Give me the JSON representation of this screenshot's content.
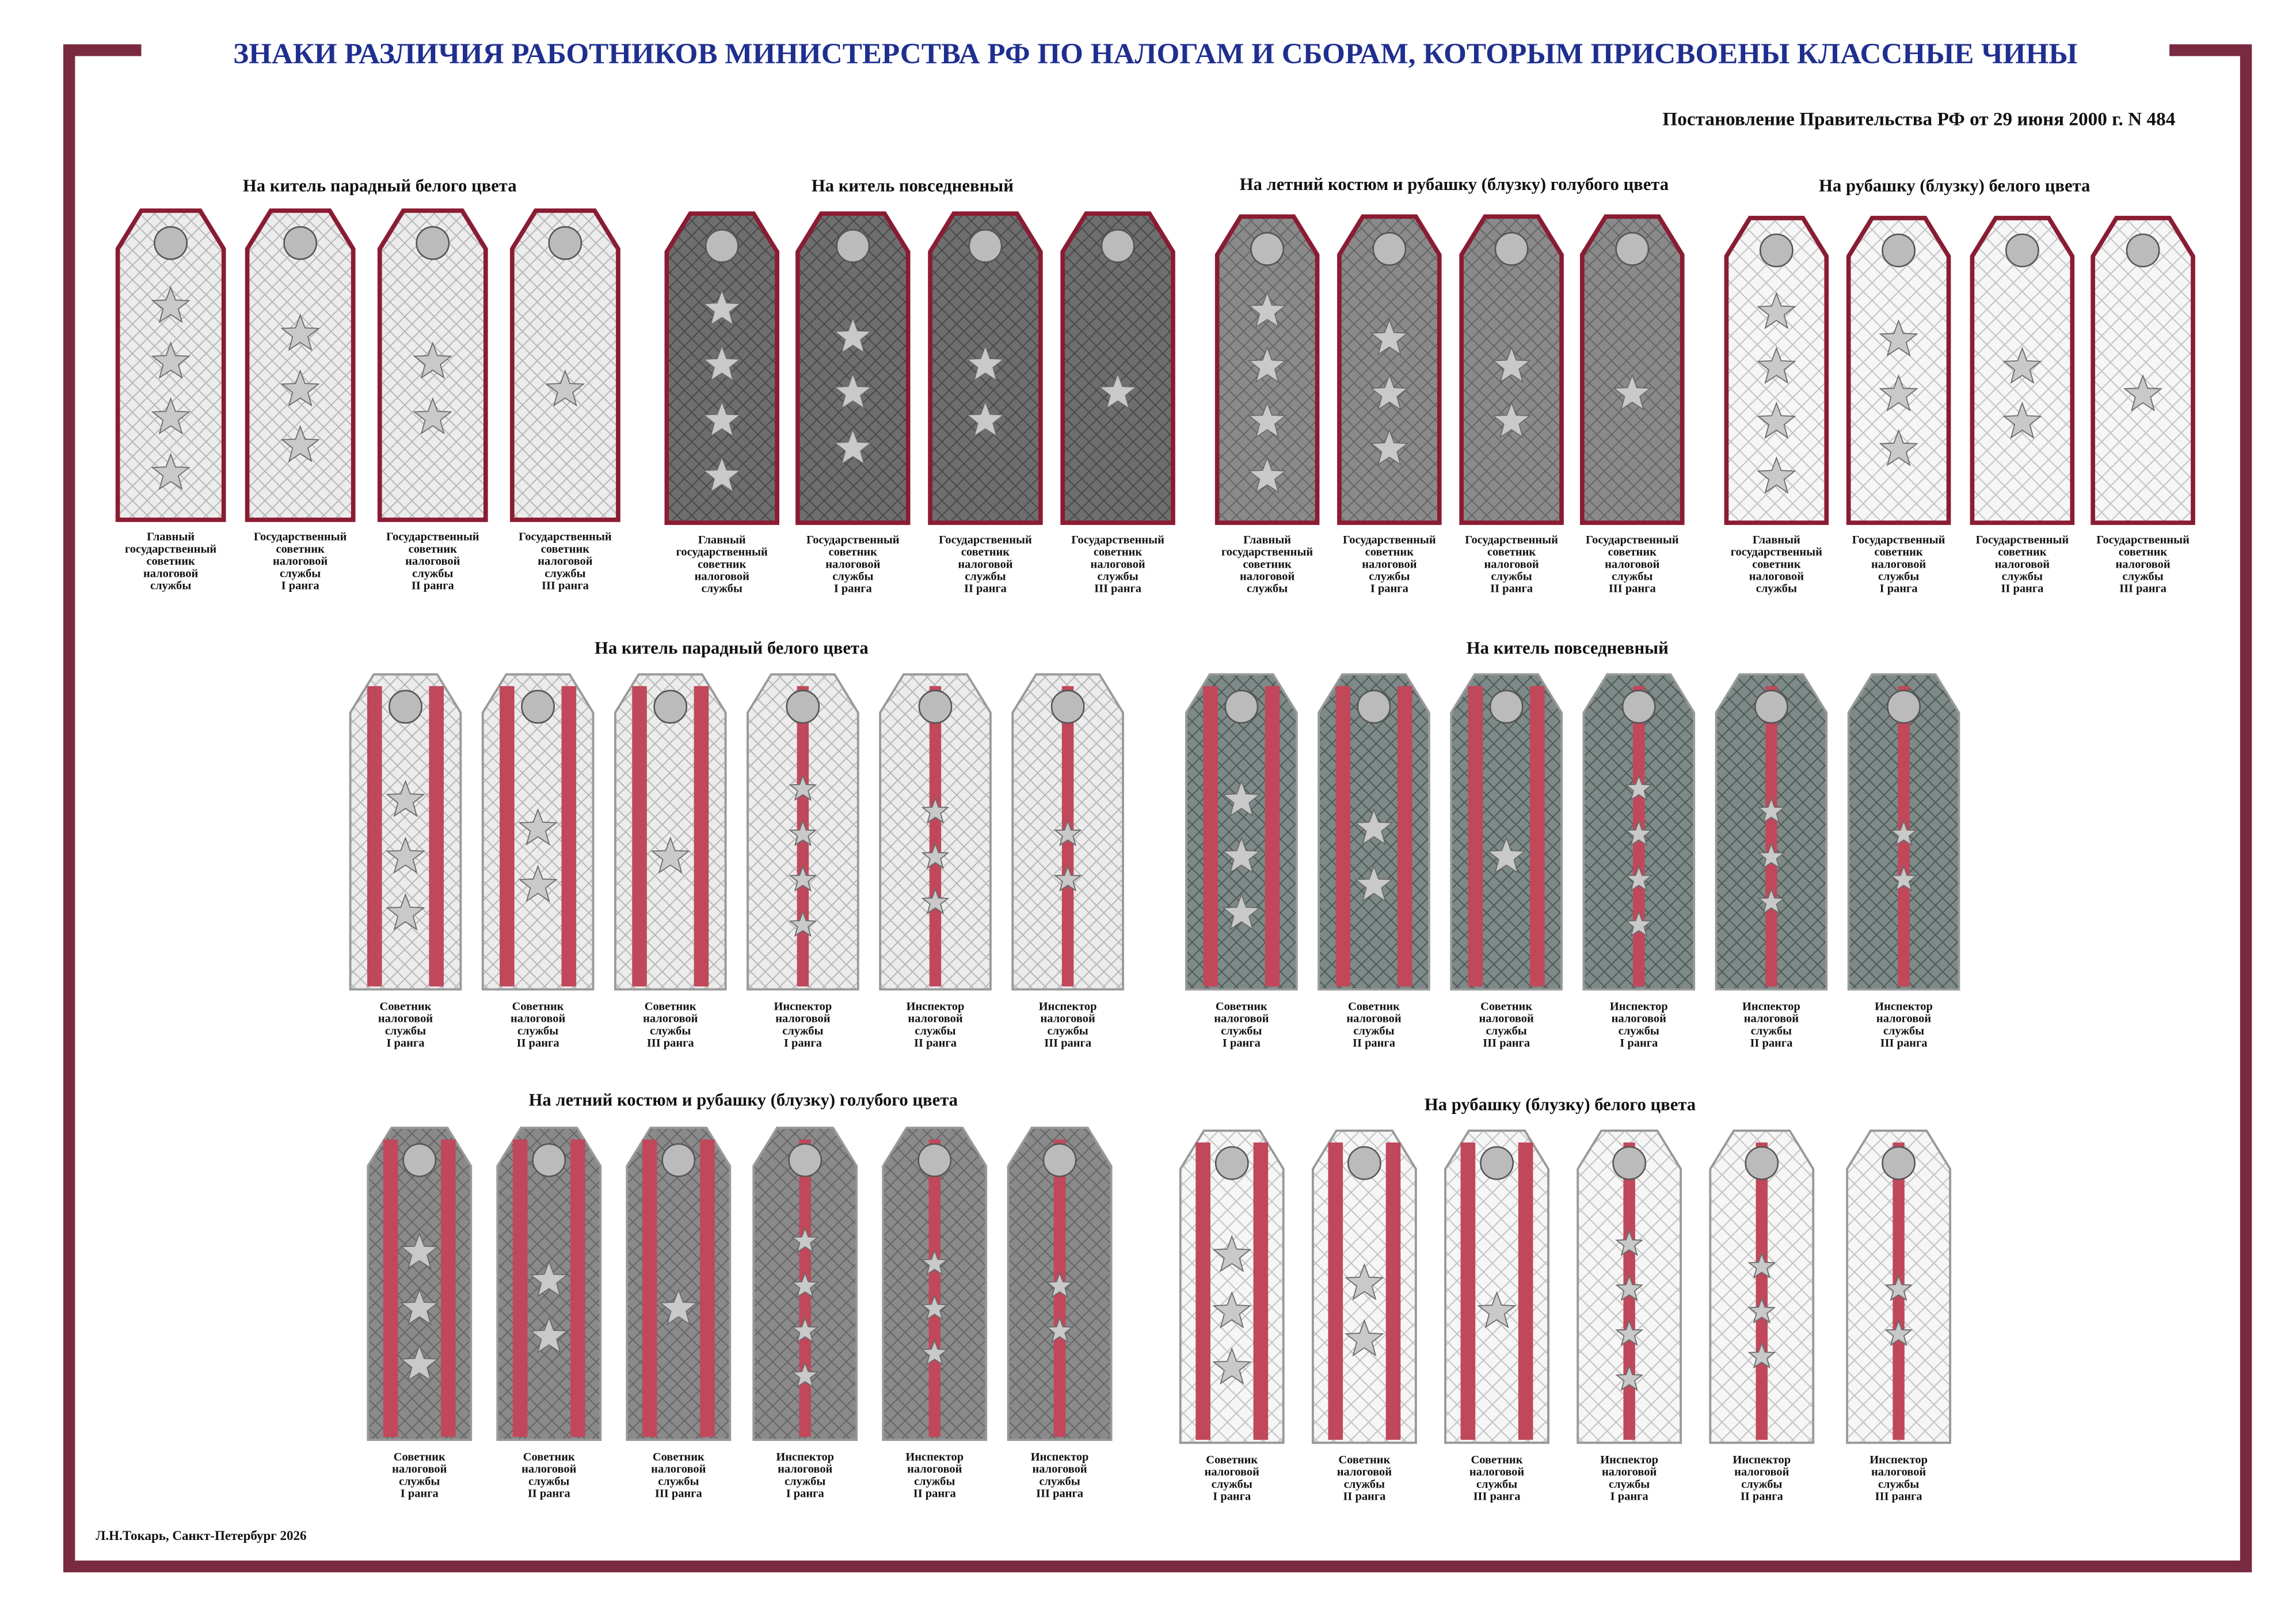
{
  "header": {
    "title": "ЗНАКИ РАЗЛИЧИЯ РАБОТНИКОВ МИНИСТЕРСТВА РФ ПО НАЛОГАМ И СБОРАМ, КОТОРЫМ ПРИСВОЕНЫ КЛАССНЫЕ ЧИНЫ",
    "subtitle": "Постановление Правительства РФ от 29 июня 2000 г. N 484"
  },
  "groups": [
    {
      "heading": "На китель парадный белого цвета",
      "items": [
        [
          "Главный",
          "государственный",
          "советник",
          "налоговой",
          "службы"
        ],
        [
          "Государственный",
          "советник",
          "налоговой",
          "службы",
          "I ранга"
        ],
        [
          "Государственный",
          "советник",
          "налоговой",
          "службы",
          "II ранга"
        ],
        [
          "Государственный",
          "советник",
          "налоговой",
          "службы",
          "III ранга"
        ]
      ]
    },
    {
      "heading": "На китель повседневный",
      "items": [
        [
          "Главный",
          "государственный",
          "советник",
          "налоговой",
          "службы"
        ],
        [
          "Государственный",
          "советник",
          "налоговой",
          "службы",
          "I ранга"
        ],
        [
          "Государственный",
          "советник",
          "налоговой",
          "службы",
          "II ранга"
        ],
        [
          "Государственный",
          "советник",
          "налоговой",
          "службы",
          "III ранга"
        ]
      ]
    },
    {
      "heading": "На летний костюм и рубашку (блузку) голубого цвета",
      "items": [
        [
          "Главный",
          "государственный",
          "советник",
          "налоговой",
          "службы"
        ],
        [
          "Государственный",
          "советник",
          "налоговой",
          "службы",
          "I ранга"
        ],
        [
          "Государственный",
          "советник",
          "налоговой",
          "службы",
          "II ранга"
        ],
        [
          "Государственный",
          "советник",
          "налоговой",
          "службы",
          "III ранга"
        ]
      ]
    },
    {
      "heading": "На рубашку (блузку) белого цвета",
      "items": [
        [
          "Главный",
          "государственный",
          "советник",
          "налоговой",
          "службы"
        ],
        [
          "Государственный",
          "советник",
          "налоговой",
          "службы",
          "I ранга"
        ],
        [
          "Государственный",
          "советник",
          "налоговой",
          "службы",
          "II ранга"
        ],
        [
          "Государственный",
          "советник",
          "налоговой",
          "службы",
          "III ранга"
        ]
      ]
    },
    {
      "heading": "На китель парадный белого цвета",
      "items": [
        [
          "Советник",
          "налоговой",
          "службы",
          "I ранга"
        ],
        [
          "Советник",
          "налоговой",
          "службы",
          "II ранга"
        ],
        [
          "Советник",
          "налоговой",
          "службы",
          "III ранга"
        ],
        [
          "Инспектор",
          "налоговой",
          "службы",
          "I ранга"
        ],
        [
          "Инспектор",
          "налоговой",
          "службы",
          "II ранга"
        ],
        [
          "Инспектор",
          "налоговой",
          "службы",
          "III ранга"
        ]
      ]
    },
    {
      "heading": "На китель повседневный",
      "items": [
        [
          "Советник",
          "налоговой",
          "службы",
          "I ранга"
        ],
        [
          "Советник",
          "налоговой",
          "службы",
          "II ранга"
        ],
        [
          "Советник",
          "налоговой",
          "службы",
          "III ранга"
        ],
        [
          "Инспектор",
          "налоговой",
          "службы",
          "I ранга"
        ],
        [
          "Инспектор",
          "налоговой",
          "службы",
          "II ранга"
        ],
        [
          "Инспектор",
          "налоговой",
          "службы",
          "III ранга"
        ]
      ]
    },
    {
      "heading": "На летний костюм и рубашку (блузку) голубого цвета",
      "items": [
        [
          "Советник",
          "налоговой",
          "службы",
          "I ранга"
        ],
        [
          "Советник",
          "налоговой",
          "службы",
          "II ранга"
        ],
        [
          "Советник",
          "налоговой",
          "службы",
          "III ранга"
        ],
        [
          "Инспектор",
          "налоговой",
          "службы",
          "I ранга"
        ],
        [
          "Инспектор",
          "налоговой",
          "службы",
          "II ранга"
        ],
        [
          "Инспектор",
          "налоговой",
          "службы",
          "III ранга"
        ]
      ]
    },
    {
      "heading": "На рубашку (блузку) белого цвета",
      "items": [
        [
          "Советник",
          "налоговой",
          "службы",
          "I ранга"
        ],
        [
          "Советник",
          "налоговой",
          "службы",
          "II ранга"
        ],
        [
          "Советник",
          "налоговой",
          "службы",
          "III ранга"
        ],
        [
          "Инспектор",
          "налоговой",
          "службы",
          "I ранга"
        ],
        [
          "Инспектор",
          "налоговой",
          "службы",
          "II ранга"
        ],
        [
          "Инспектор",
          "налоговой",
          "службы",
          "III ранга"
        ]
      ]
    }
  ],
  "footer": {
    "author": "Л.Н.Токарь, Санкт-Петербург 2026"
  }
}
